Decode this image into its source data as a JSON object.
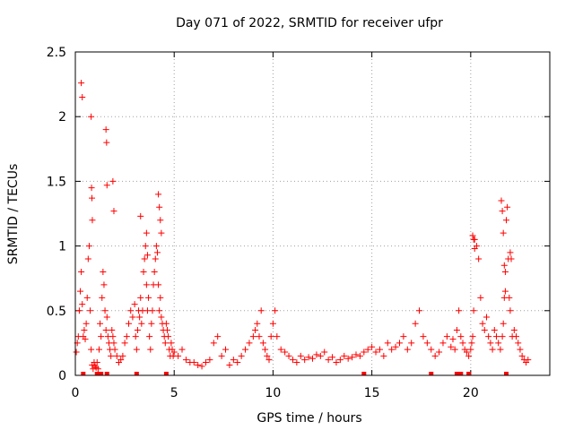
{
  "chart_data": {
    "type": "scatter",
    "title": "Day 071 of 2022, SRMTID for receiver ufpr",
    "xlabel": "GPS time / hours",
    "ylabel": "SRMTID / TECUs",
    "xlim": [
      0,
      24
    ],
    "ylim": [
      0,
      2.5
    ],
    "xticks": [
      0,
      5,
      10,
      15,
      20
    ],
    "xtick_labels": [
      "0",
      "5",
      "10",
      "15",
      "20"
    ],
    "yticks": [
      0,
      0.5,
      1,
      1.5,
      2,
      2.5
    ],
    "ytick_labels": [
      "0",
      "0.5",
      "1",
      "1.5",
      "2",
      "2.5"
    ],
    "grid": true,
    "marker": "+",
    "series": [
      {
        "name": "SRMTID",
        "color": "#ff0000",
        "x": [
          0.05,
          0.1,
          0.15,
          0.2,
          0.25,
          0.3,
          0.35,
          0.4,
          0.45,
          0.5,
          0.55,
          0.6,
          0.65,
          0.7,
          0.75,
          0.8,
          0.85,
          0.9,
          0.95,
          1.0,
          1.05,
          1.1,
          1.15,
          1.2,
          1.25,
          1.3,
          1.35,
          1.4,
          1.45,
          1.5,
          1.55,
          1.6,
          1.65,
          1.7,
          1.75,
          1.8,
          1.85,
          1.9,
          1.95,
          2.0,
          2.1,
          2.2,
          2.3,
          2.4,
          2.5,
          2.6,
          2.7,
          2.8,
          2.9,
          3.0,
          3.05,
          3.1,
          3.15,
          3.2,
          3.25,
          3.3,
          3.35,
          3.4,
          3.45,
          3.5,
          3.55,
          3.6,
          3.65,
          3.7,
          3.75,
          3.8,
          3.85,
          3.9,
          3.95,
          4.0,
          4.05,
          4.1,
          4.15,
          4.2,
          4.25,
          4.3,
          4.35,
          4.4,
          4.45,
          4.5,
          4.55,
          4.6,
          4.65,
          4.7,
          4.75,
          4.8,
          4.85,
          4.9,
          4.95,
          5.0,
          5.2,
          5.4,
          5.6,
          5.8,
          6.0,
          6.2,
          6.4,
          6.6,
          6.8,
          7.0,
          7.2,
          7.4,
          7.6,
          7.8,
          8.0,
          8.2,
          8.4,
          8.6,
          8.8,
          9.0,
          9.1,
          9.2,
          9.3,
          9.4,
          9.5,
          9.6,
          9.7,
          9.8,
          9.9,
          10.0,
          10.1,
          10.2,
          10.4,
          10.6,
          10.8,
          11.0,
          11.2,
          11.4,
          11.6,
          11.8,
          12.0,
          12.2,
          12.4,
          12.6,
          12.8,
          13.0,
          13.2,
          13.4,
          13.6,
          13.8,
          14.0,
          14.2,
          14.4,
          14.6,
          14.8,
          15.0,
          15.2,
          15.4,
          15.6,
          15.8,
          16.0,
          16.2,
          16.4,
          16.6,
          16.8,
          17.0,
          17.2,
          17.4,
          17.6,
          17.8,
          18.0,
          18.2,
          18.4,
          18.6,
          18.8,
          19.0,
          19.1,
          19.2,
          19.3,
          19.4,
          19.5,
          19.6,
          19.7,
          19.8,
          19.9,
          20.0,
          20.05,
          20.1,
          20.15,
          20.2,
          20.3,
          20.4,
          20.5,
          20.6,
          20.7,
          20.8,
          20.9,
          21.0,
          21.1,
          21.2,
          21.3,
          21.4,
          21.5,
          21.6,
          21.65,
          21.7,
          21.75,
          21.8,
          21.85,
          21.9,
          21.95,
          22.0,
          22.1,
          22.2,
          22.3,
          22.4,
          22.5,
          22.6,
          22.7,
          22.8,
          22.9,
          0.3,
          0.35,
          0.8,
          0.82,
          0.84,
          0.86,
          1.55,
          1.58,
          1.6,
          1.9,
          1.95,
          3.3,
          3.6,
          3.65,
          4.2,
          4.25,
          4.3,
          4.35,
          21.55,
          21.6,
          21.65,
          21.7,
          21.75,
          22.0,
          22.05,
          20.1,
          20.15,
          20.2
        ],
        "y": [
          0.18,
          0.25,
          0.3,
          0.5,
          0.65,
          0.8,
          0.55,
          0.3,
          0.35,
          0.28,
          0.4,
          0.6,
          0.9,
          1.0,
          0.5,
          0.2,
          0.08,
          0.05,
          0.1,
          0.07,
          0.06,
          0.1,
          0.05,
          0.2,
          0.4,
          0.3,
          0.6,
          0.8,
          0.7,
          0.5,
          0.35,
          0.45,
          0.3,
          0.25,
          0.2,
          0.15,
          0.35,
          0.3,
          0.25,
          0.2,
          0.15,
          0.1,
          0.12,
          0.15,
          0.25,
          0.3,
          0.4,
          0.5,
          0.45,
          0.55,
          0.3,
          0.2,
          0.35,
          0.5,
          0.45,
          0.6,
          0.4,
          0.5,
          0.8,
          0.9,
          1.0,
          0.7,
          0.5,
          0.6,
          0.3,
          0.2,
          0.4,
          0.5,
          0.7,
          0.8,
          0.9,
          1.0,
          0.95,
          0.7,
          0.5,
          0.6,
          0.45,
          0.4,
          0.35,
          0.3,
          0.25,
          0.4,
          0.35,
          0.3,
          0.2,
          0.15,
          0.25,
          0.2,
          0.15,
          0.18,
          0.15,
          0.2,
          0.12,
          0.1,
          0.1,
          0.08,
          0.07,
          0.1,
          0.12,
          0.25,
          0.3,
          0.15,
          0.2,
          0.08,
          0.12,
          0.1,
          0.15,
          0.2,
          0.25,
          0.3,
          0.35,
          0.4,
          0.3,
          0.5,
          0.25,
          0.2,
          0.15,
          0.12,
          0.3,
          0.4,
          0.5,
          0.3,
          0.2,
          0.18,
          0.15,
          0.12,
          0.1,
          0.15,
          0.12,
          0.14,
          0.13,
          0.16,
          0.15,
          0.18,
          0.12,
          0.14,
          0.1,
          0.12,
          0.15,
          0.13,
          0.14,
          0.16,
          0.15,
          0.18,
          0.2,
          0.22,
          0.18,
          0.2,
          0.15,
          0.25,
          0.2,
          0.22,
          0.25,
          0.3,
          0.2,
          0.25,
          0.4,
          0.5,
          0.3,
          0.25,
          0.2,
          0.15,
          0.18,
          0.25,
          0.3,
          0.22,
          0.28,
          0.2,
          0.35,
          0.5,
          0.3,
          0.25,
          0.2,
          0.18,
          0.15,
          0.2,
          0.25,
          0.3,
          0.5,
          1.05,
          1.0,
          0.9,
          0.6,
          0.4,
          0.35,
          0.45,
          0.3,
          0.25,
          0.2,
          0.35,
          0.3,
          0.25,
          0.2,
          0.3,
          0.4,
          0.6,
          0.8,
          1.2,
          1.3,
          0.9,
          0.6,
          0.5,
          0.3,
          0.35,
          0.3,
          0.25,
          0.2,
          0.15,
          0.12,
          0.1,
          0.12,
          2.26,
          2.15,
          2.0,
          1.45,
          1.37,
          1.2,
          1.9,
          1.8,
          1.47,
          1.5,
          1.27,
          1.23,
          1.1,
          0.93,
          1.4,
          1.3,
          1.2,
          1.1,
          1.35,
          1.27,
          1.1,
          0.85,
          0.65,
          0.95,
          0.9,
          1.08,
          1.05,
          0.98
        ]
      }
    ],
    "baseline_markers_x": [
      0.4,
      1.1,
      1.3,
      1.6,
      3.1,
      4.6,
      14.6,
      18.0,
      19.3,
      19.5,
      19.9,
      21.8
    ]
  }
}
